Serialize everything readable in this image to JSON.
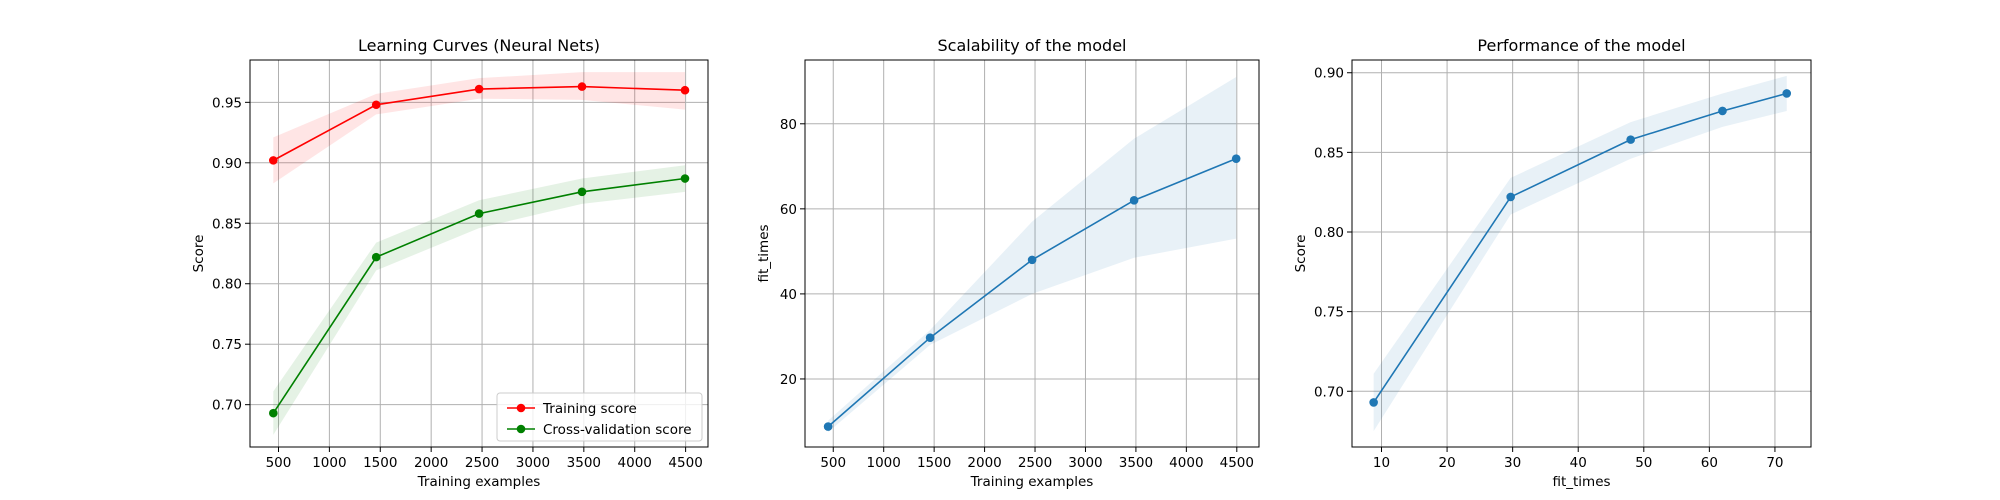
{
  "chart_data": [
    {
      "type": "line",
      "title": "Learning Curves (Neural Nets)",
      "xlabel": "Training examples",
      "ylabel": "Score",
      "xlim": [
        220,
        4720
      ],
      "ylim": [
        0.665,
        0.985
      ],
      "xticks": [
        500,
        1000,
        1500,
        2000,
        2500,
        3000,
        3500,
        4000,
        4500
      ],
      "xtick_labels": [
        "500",
        "1000",
        "1500",
        "2000",
        "2500",
        "3000",
        "3500",
        "4000",
        "4500"
      ],
      "yticks": [
        0.7,
        0.75,
        0.8,
        0.85,
        0.9,
        0.95
      ],
      "ytick_labels": [
        "0.70",
        "0.75",
        "0.80",
        "0.85",
        "0.90",
        "0.95"
      ],
      "grid": true,
      "legend_position": "lower-right",
      "x": [
        449,
        1460,
        2471,
        3482,
        4494
      ],
      "series": [
        {
          "name": "Training score",
          "color": "#ff0000",
          "values": [
            0.902,
            0.948,
            0.961,
            0.963,
            0.96
          ],
          "band_lower": [
            0.883,
            0.94,
            0.953,
            0.952,
            0.944
          ],
          "band_upper": [
            0.921,
            0.957,
            0.97,
            0.975,
            0.975
          ]
        },
        {
          "name": "Cross-validation score",
          "color": "#008000",
          "values": [
            0.693,
            0.822,
            0.858,
            0.876,
            0.887
          ],
          "band_lower": [
            0.675,
            0.811,
            0.846,
            0.866,
            0.876
          ],
          "band_upper": [
            0.711,
            0.834,
            0.869,
            0.887,
            0.898
          ]
        }
      ]
    },
    {
      "type": "line",
      "title": "Scalability of the model",
      "xlabel": "Training examples",
      "ylabel": "fit_times",
      "xlim": [
        220,
        4720
      ],
      "ylim": [
        4,
        95
      ],
      "xticks": [
        500,
        1000,
        1500,
        2000,
        2500,
        3000,
        3500,
        4000,
        4500
      ],
      "xtick_labels": [
        "500",
        "1000",
        "1500",
        "2000",
        "2500",
        "3000",
        "3500",
        "4000",
        "4500"
      ],
      "yticks": [
        20,
        40,
        60,
        80
      ],
      "ytick_labels": [
        "20",
        "40",
        "60",
        "80"
      ],
      "grid": true,
      "x": [
        449,
        1460,
        2471,
        3482,
        4494
      ],
      "series": [
        {
          "color": "#1f77b4",
          "values": [
            8.8,
            29.7,
            48.0,
            62.0,
            71.8
          ],
          "band_lower": [
            7.5,
            28.0,
            40.0,
            48.5,
            53.0
          ],
          "band_upper": [
            10.2,
            31.5,
            57.0,
            76.5,
            91.0
          ]
        }
      ]
    },
    {
      "type": "line",
      "title": "Performance of the model",
      "xlabel": "fit_times",
      "ylabel": "Score",
      "xlim": [
        5.5,
        75.5
      ],
      "ylim": [
        0.665,
        0.908
      ],
      "xticks": [
        10,
        20,
        30,
        40,
        50,
        60,
        70
      ],
      "xtick_labels": [
        "10",
        "20",
        "30",
        "40",
        "50",
        "60",
        "70"
      ],
      "yticks": [
        0.7,
        0.75,
        0.8,
        0.85,
        0.9
      ],
      "ytick_labels": [
        "0.70",
        "0.75",
        "0.80",
        "0.85",
        "0.90"
      ],
      "grid": true,
      "x": [
        8.8,
        29.7,
        48.0,
        62.0,
        71.8
      ],
      "series": [
        {
          "color": "#1f77b4",
          "values": [
            0.693,
            0.822,
            0.858,
            0.876,
            0.887
          ],
          "band_lower": [
            0.675,
            0.811,
            0.846,
            0.866,
            0.876
          ],
          "band_upper": [
            0.711,
            0.834,
            0.869,
            0.887,
            0.898
          ]
        }
      ]
    }
  ]
}
